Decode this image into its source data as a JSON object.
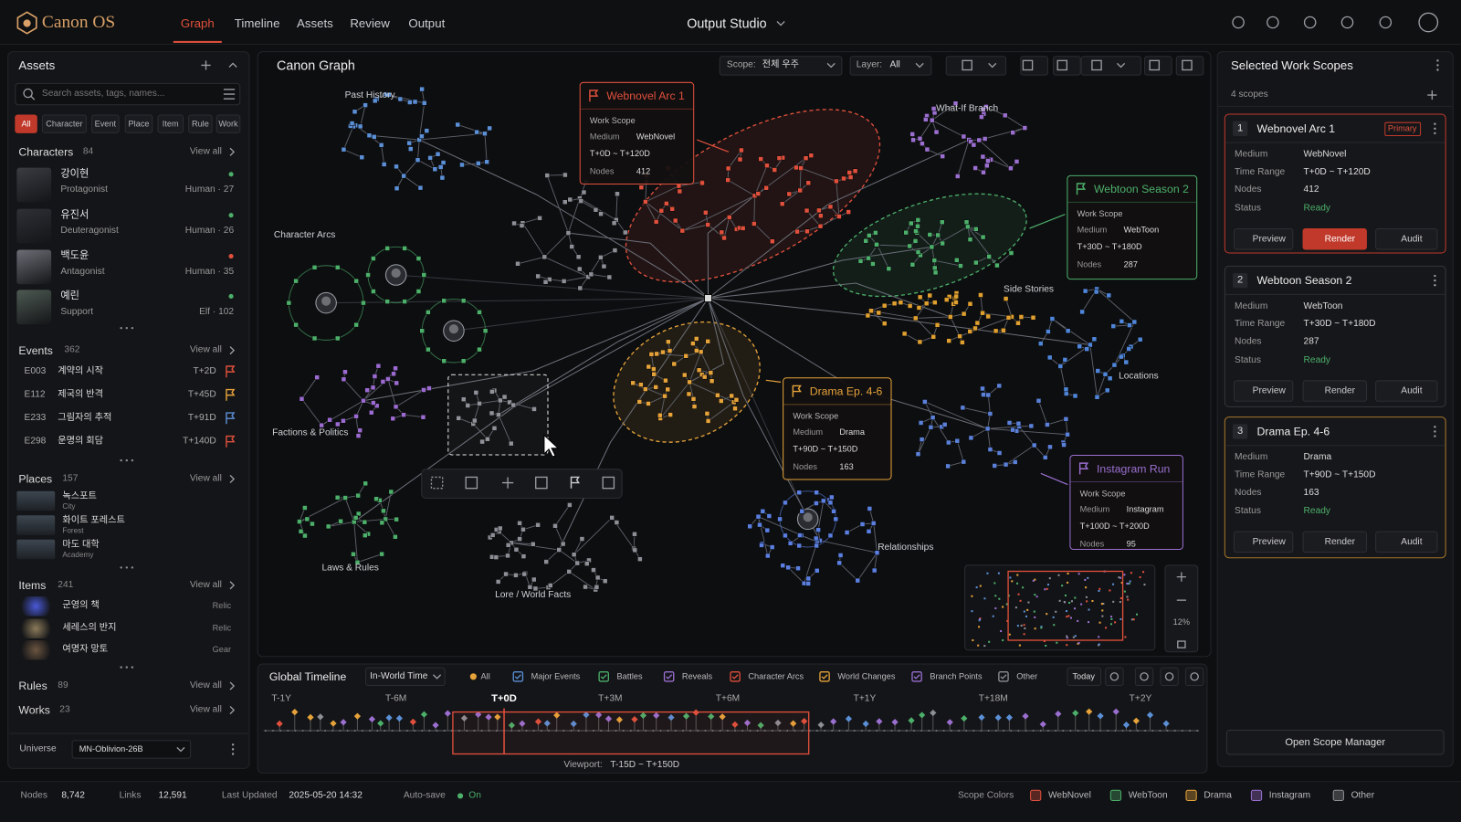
{
  "header": {
    "brand": "Canon OS",
    "nav": [
      "Graph",
      "Timeline",
      "Assets",
      "Review",
      "Output"
    ],
    "workspace": "Output Studio"
  },
  "assets": {
    "title": "Assets",
    "search_placeholder": "Search assets, tags, names...",
    "filters": [
      "All",
      "Character",
      "Event",
      "Place",
      "Item",
      "Rule",
      "Work"
    ],
    "view_all": "View all",
    "characters": {
      "label": "Characters",
      "count": 84,
      "items": [
        {
          "name": "강이현",
          "role": "Protagonist",
          "meta": "Human · 27"
        },
        {
          "name": "유진서",
          "role": "Deuteragonist",
          "meta": "Human · 26"
        },
        {
          "name": "백도윤",
          "role": "Antagonist",
          "meta": "Human · 35"
        },
        {
          "name": "예린",
          "role": "Support",
          "meta": "Elf · 102"
        }
      ]
    },
    "events": {
      "label": "Events",
      "count": 362,
      "items": [
        {
          "id": "E003",
          "name": "계약의 시작",
          "time": "T+2D"
        },
        {
          "id": "E112",
          "name": "제국의 반격",
          "time": "T+45D"
        },
        {
          "id": "E233",
          "name": "그림자의 추적",
          "time": "T+91D"
        },
        {
          "id": "E298",
          "name": "운명의 회담",
          "time": "T+140D"
        }
      ]
    },
    "places": {
      "label": "Places",
      "count": 157,
      "items": [
        {
          "name": "녹스포트",
          "type": "City"
        },
        {
          "name": "화이트 포레스트",
          "type": "Forest"
        },
        {
          "name": "마도 대학",
          "type": "Academy"
        }
      ]
    },
    "items": {
      "label": "Items",
      "count": 241,
      "items": [
        {
          "name": "군영의 책",
          "type": "Relic"
        },
        {
          "name": "세레스의 반지",
          "type": "Relic"
        },
        {
          "name": "여명자 망토",
          "type": "Gear"
        }
      ]
    },
    "rules": {
      "label": "Rules",
      "count": 89
    },
    "works": {
      "label": "Works",
      "count": 23
    },
    "universe": {
      "label": "Universe",
      "value": "MN-Oblivion-26B"
    }
  },
  "canvas": {
    "title": "Canon Graph",
    "scope_label": "Scope:",
    "scope_value": "전체 우주",
    "layer_label": "Layer:",
    "layer_value": "All",
    "regions": [
      "Past History",
      "What-If Branch",
      "Character Arcs",
      "Side Stories",
      "Locations",
      "Factions & Politics",
      "Relationships",
      "Laws & Rules",
      "Lore / World Facts"
    ],
    "callout_label": "Work Scope",
    "zoom": "12%"
  },
  "scopes": [
    {
      "number": 1,
      "name": "Webnovel Arc 1",
      "badge": "Primary",
      "medium": "WebNovel",
      "range": "T+0D ~ T+120D",
      "nodes": 412,
      "status": "Ready"
    },
    {
      "number": 2,
      "name": "Webtoon Season 2",
      "medium": "WebToon",
      "range": "T+30D ~ T+180D",
      "nodes": 287,
      "status": "Ready"
    },
    {
      "number": 3,
      "name": "Drama Ep. 4-6",
      "medium": "Drama",
      "range": "T+90D ~ T+150D",
      "nodes": 163,
      "status": "Ready"
    },
    {
      "name": "Instagram Run",
      "medium": "Instagram",
      "range": "T+100D ~ T+200D",
      "nodes": 95
    }
  ],
  "timeline": {
    "title": "Global Timeline",
    "mode": "In-World Time",
    "filters": [
      "All",
      "Major Events",
      "Battles",
      "Reveals",
      "Character Arcs",
      "World Changes",
      "Branch Points",
      "Other"
    ],
    "today": "Today",
    "ticks": [
      "T-1Y",
      "T-6M",
      "T+0D",
      "T+3M",
      "T+6M",
      "T+1Y",
      "T+18M",
      "T+2Y"
    ],
    "viewport_label": "Viewport:",
    "viewport": "T-15D ~ T+150D"
  },
  "right_panel": {
    "title": "Selected Work Scopes",
    "count": "4 scopes",
    "field_labels": [
      "Medium",
      "Time Range",
      "Nodes",
      "Status"
    ],
    "buttons": [
      "Preview",
      "Render",
      "Audit"
    ],
    "manager": "Open Scope Manager"
  },
  "status_bar": {
    "nodes_label": "Nodes",
    "nodes": "8,742",
    "links_label": "Links",
    "links": "12,591",
    "updated_label": "Last Updated",
    "updated": "2025-05-20 14:32",
    "autosave_label": "Auto-save",
    "autosave": "On",
    "legend_title": "Scope Colors",
    "legend": [
      "WebNovel",
      "WebToon",
      "Drama",
      "Instagram",
      "Other"
    ]
  }
}
